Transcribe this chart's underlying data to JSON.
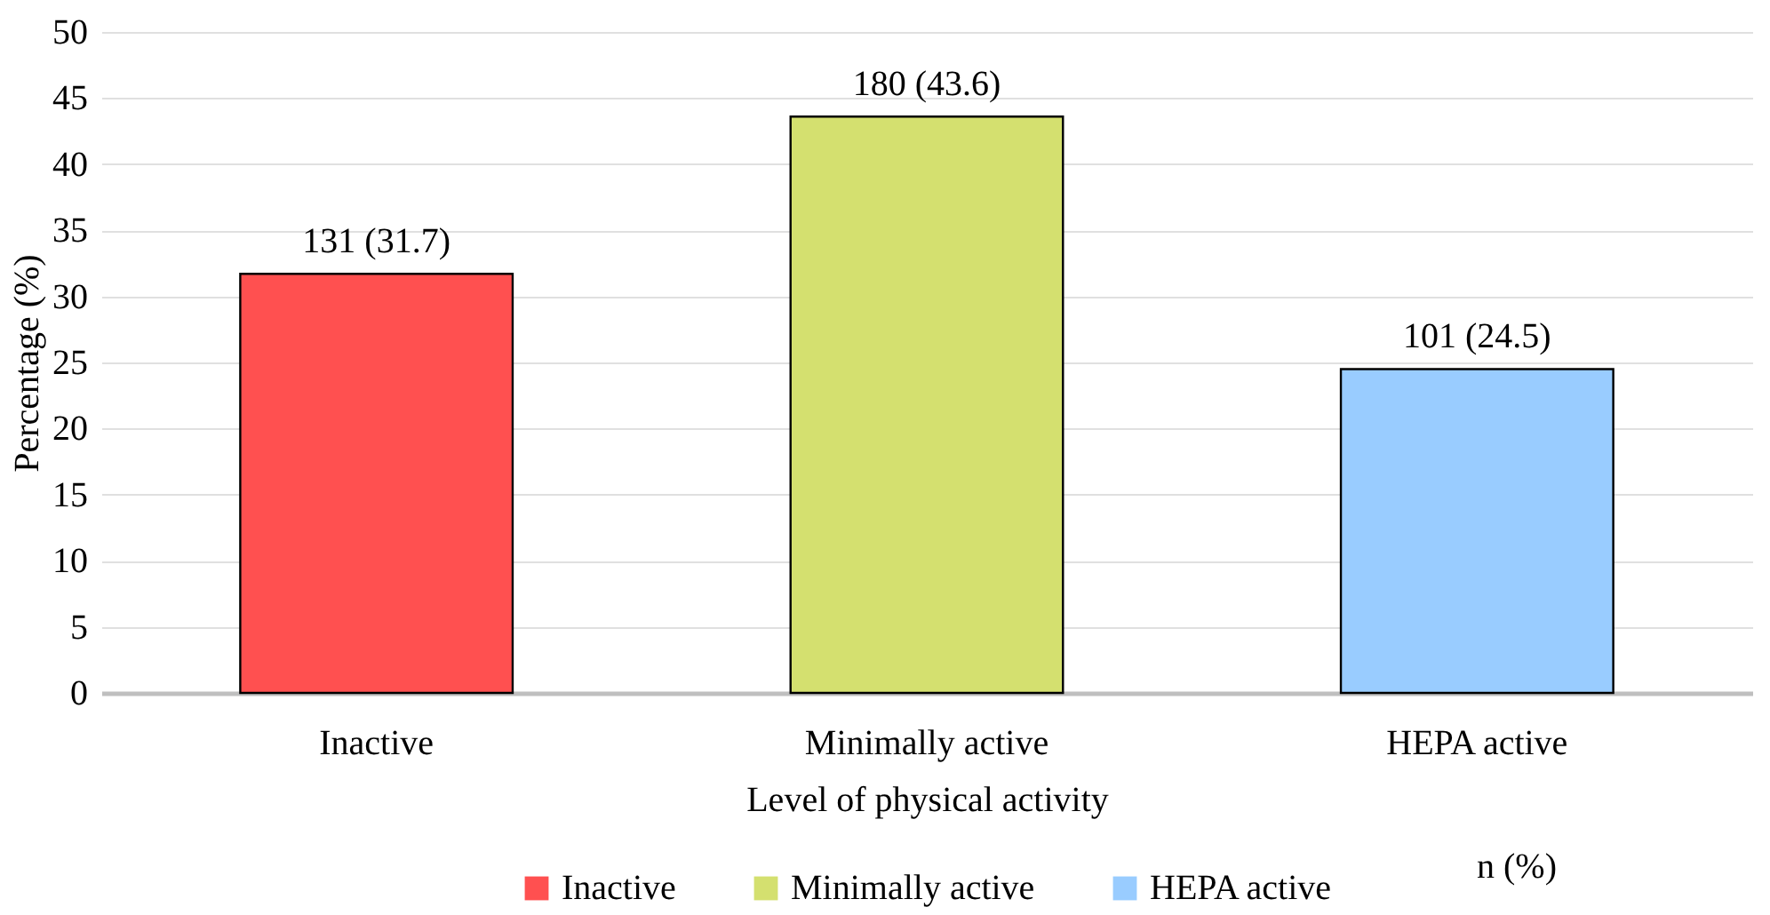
{
  "chart_data": {
    "type": "bar",
    "xlabel": "Level of physical activity",
    "ylabel": "Percentage (%)",
    "categories": [
      "Inactive",
      "Minimally active",
      "HEPA active"
    ],
    "series": [
      {
        "name": "Inactive",
        "color": "#ff5050",
        "values": [
          31.7,
          null,
          null
        ],
        "value_labels": [
          "131 (31.7)",
          null,
          null
        ]
      },
      {
        "name": "Minimally active",
        "color": "#d4e06f",
        "values": [
          null,
          43.6,
          null
        ],
        "value_labels": [
          null,
          "180 (43.6)",
          null
        ]
      },
      {
        "name": "HEPA active",
        "color": "#99ccff",
        "values": [
          null,
          null,
          24.5
        ],
        "value_labels": [
          null,
          null,
          "101 (24.5)"
        ]
      }
    ],
    "ylim": [
      0,
      50
    ],
    "yticks": [
      0,
      5,
      10,
      15,
      20,
      25,
      30,
      35,
      40,
      45,
      50
    ],
    "grid": "y",
    "legend": "bottom",
    "annotations": [
      "n (%)"
    ]
  }
}
